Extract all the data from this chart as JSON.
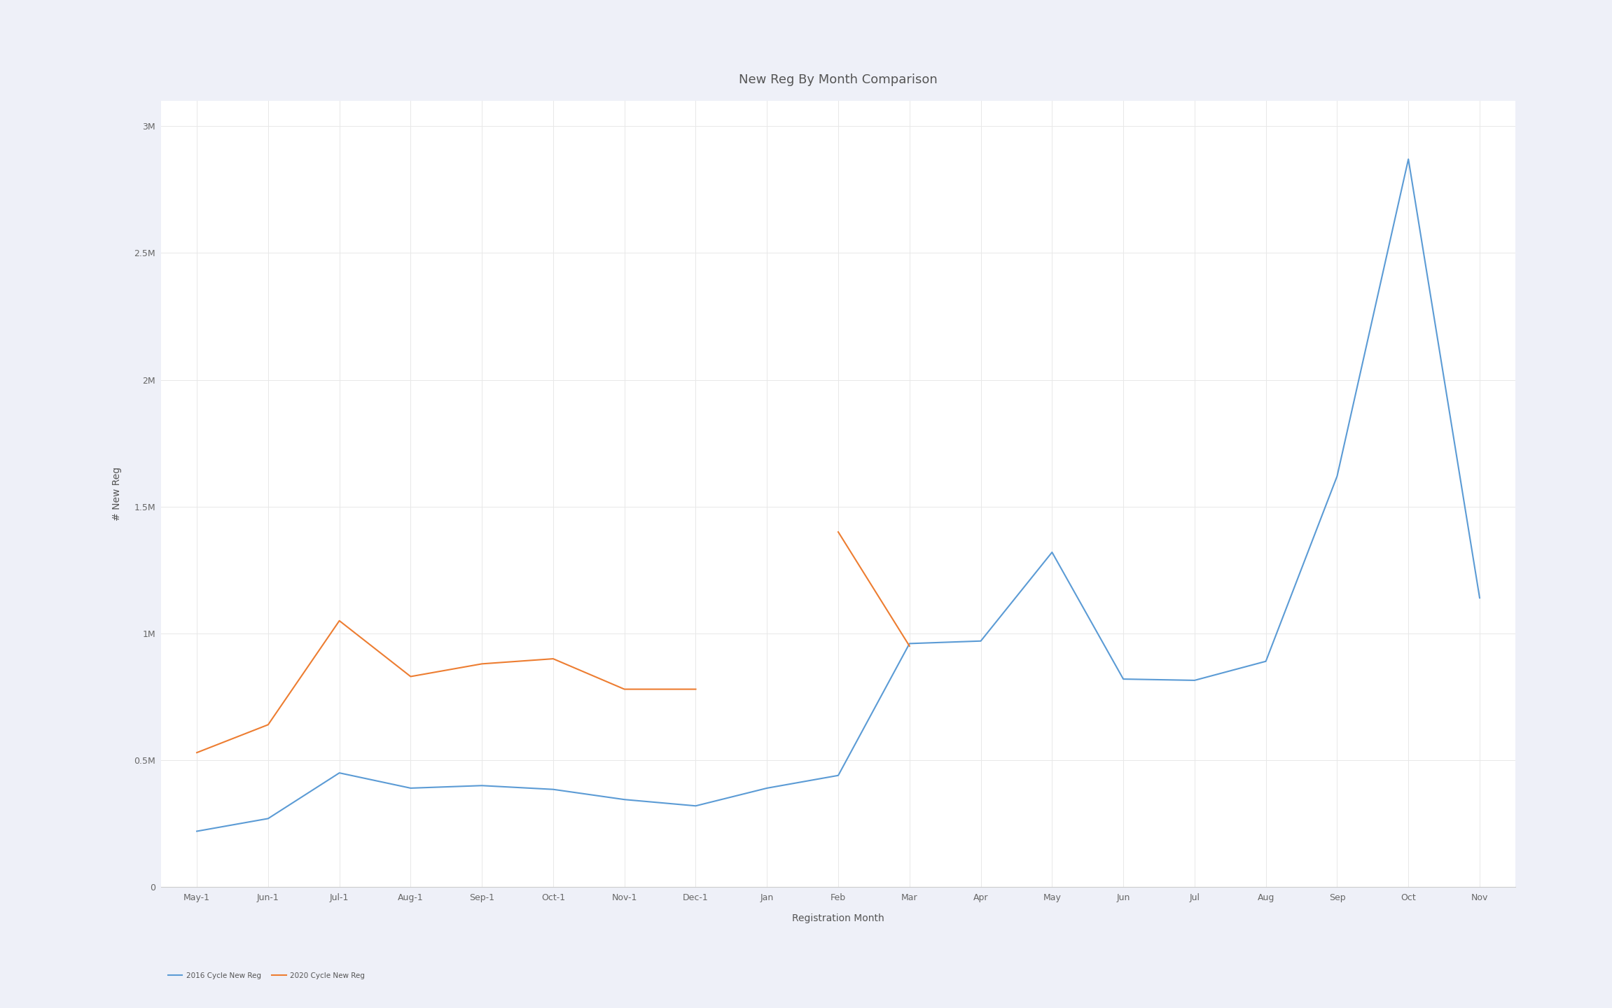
{
  "title": "New Reg By Month Comparison",
  "xlabel": "Registration Month",
  "ylabel": "# New Reg",
  "background_color": "#eef0f8",
  "plot_background_color": "#ffffff",
  "x_labels": [
    "May-1",
    "Jun-1",
    "Jul-1",
    "Aug-1",
    "Sep-1",
    "Oct-1",
    "Nov-1",
    "Dec-1",
    "Jan",
    "Feb",
    "Mar",
    "Apr",
    "May",
    "Jun",
    "Jul",
    "Aug",
    "Sep",
    "Oct",
    "Nov"
  ],
  "series_2016": {
    "label": "2016 Cycle New Reg",
    "color": "#5b9bd5",
    "values": [
      220000,
      270000,
      450000,
      390000,
      400000,
      385000,
      345000,
      320000,
      390000,
      440000,
      960000,
      970000,
      1320000,
      820000,
      815000,
      890000,
      1620000,
      2870000,
      1140000
    ]
  },
  "series_2020": {
    "label": "2020 Cycle New Reg",
    "color": "#ed7d31",
    "values": [
      530000,
      640000,
      1050000,
      830000,
      880000,
      900000,
      780000,
      780000,
      null,
      1400000,
      950000,
      null,
      null,
      null,
      null,
      null,
      null,
      null,
      null
    ]
  },
  "ylim": [
    0,
    3100000
  ],
  "yticks": [
    0,
    500000,
    1000000,
    1500000,
    2000000,
    2500000,
    3000000
  ],
  "ytick_labels": [
    "0",
    "0.5M",
    "1M",
    "1.5M",
    "2M",
    "2.5M",
    "3M"
  ],
  "grid_color": "#e8e8e8",
  "title_fontsize": 13,
  "axis_label_fontsize": 10,
  "tick_fontsize": 9,
  "legend_fontsize": 7.5,
  "line_width": 1.5
}
